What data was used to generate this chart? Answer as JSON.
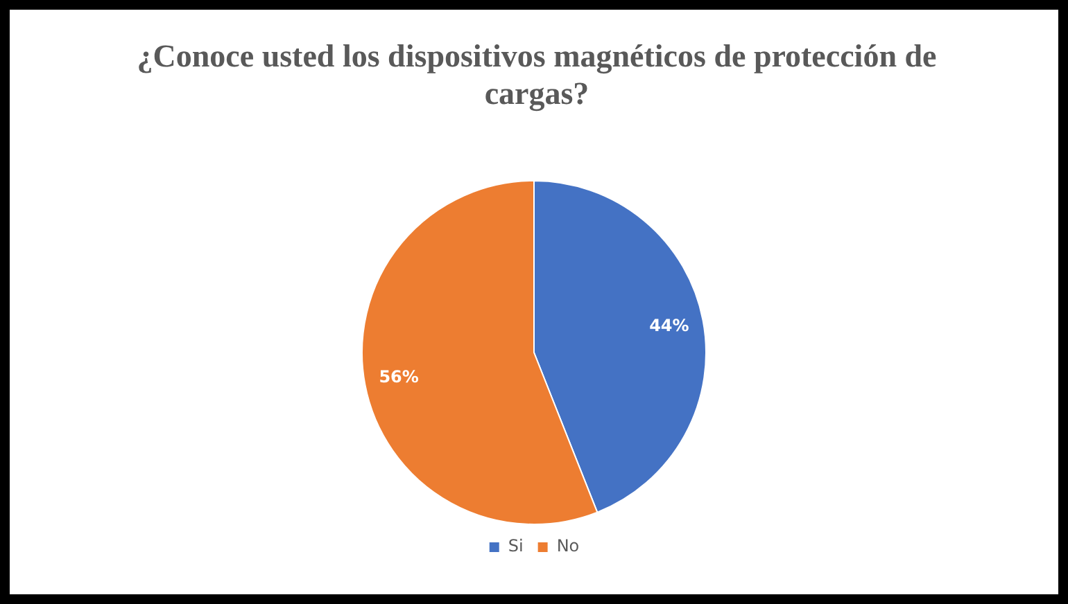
{
  "chart_data": {
    "type": "pie",
    "title": "¿Conoce usted los dispositivos magnéticos de protección de cargas?",
    "categories": [
      "Si",
      "No"
    ],
    "values": [
      44,
      56
    ],
    "colors": [
      "#4472c4",
      "#ed7d31"
    ],
    "value_labels": [
      "44%",
      "56%"
    ],
    "legend": "bottom"
  }
}
